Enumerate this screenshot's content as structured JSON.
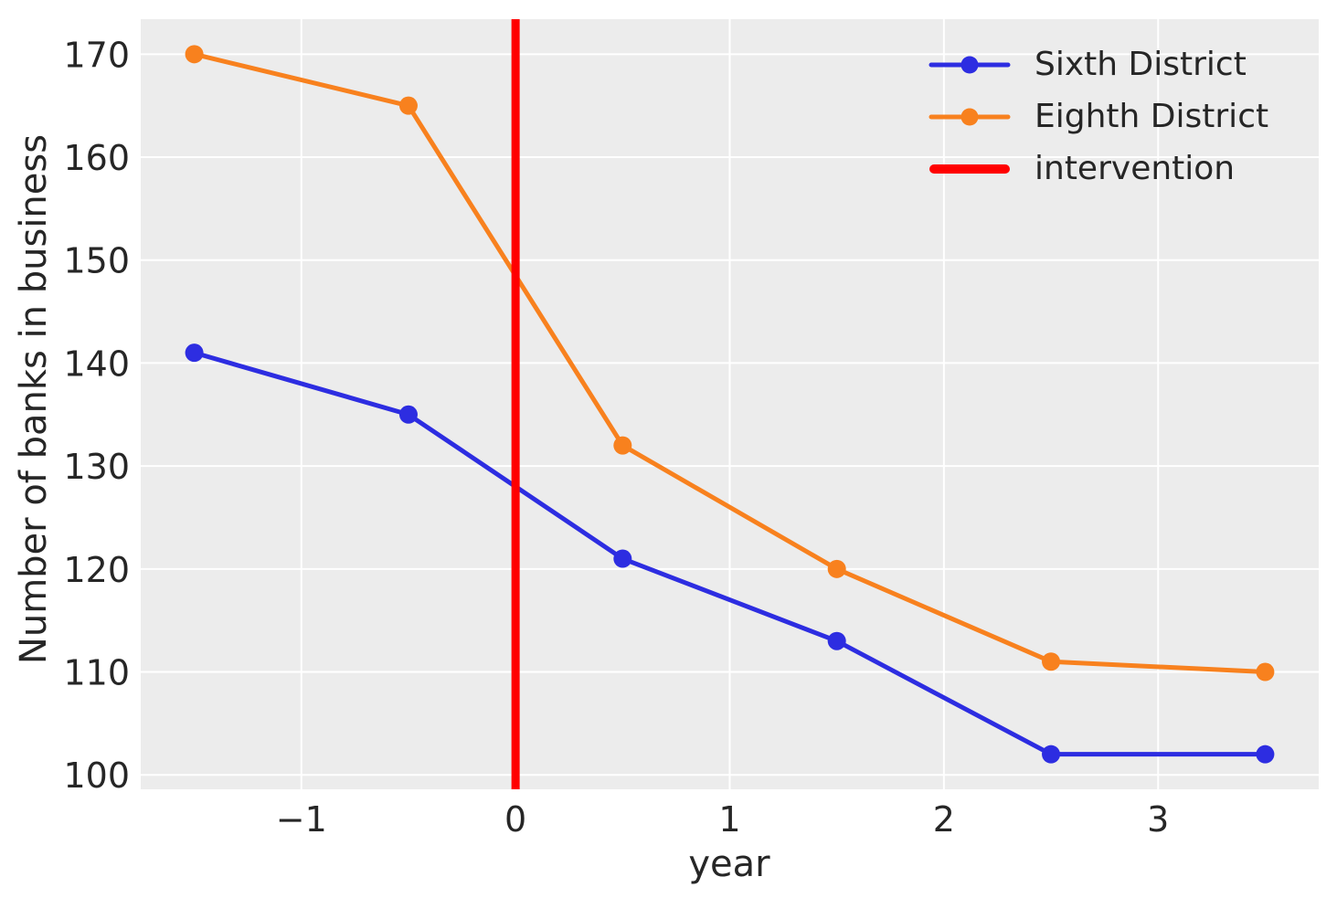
{
  "chart_data": {
    "type": "line",
    "x": [
      -1.5,
      -0.5,
      0.5,
      1.5,
      2.5,
      3.5
    ],
    "series": [
      {
        "name": "Sixth District",
        "color": "#2d2de1",
        "values": [
          141,
          135,
          121,
          113,
          102,
          102
        ]
      },
      {
        "name": "Eighth District",
        "color": "#f8811e",
        "values": [
          170,
          165,
          132,
          120,
          111,
          110
        ]
      }
    ],
    "intervention": {
      "label": "intervention",
      "x": 0,
      "color": "#ff0000"
    },
    "title": "",
    "xlabel": "year",
    "ylabel": "Number of banks in business",
    "xticks": [
      -1,
      0,
      1,
      2,
      3
    ],
    "xtick_labels": [
      "−1",
      "0",
      "1",
      "2",
      "3"
    ],
    "yticks": [
      100,
      110,
      120,
      130,
      140,
      150,
      160,
      170
    ],
    "ytick_labels": [
      "100",
      "110",
      "120",
      "130",
      "140",
      "150",
      "160",
      "170"
    ],
    "xlim": [
      -1.75,
      3.75
    ],
    "ylim": [
      98.6,
      173.4
    ],
    "grid": true,
    "legend_position": "upper right"
  },
  "styles": {
    "axes_background": "#ececec",
    "grid_color": "#ffffff",
    "tick_label_color": "#262626",
    "figure_background": "#ffffff"
  }
}
